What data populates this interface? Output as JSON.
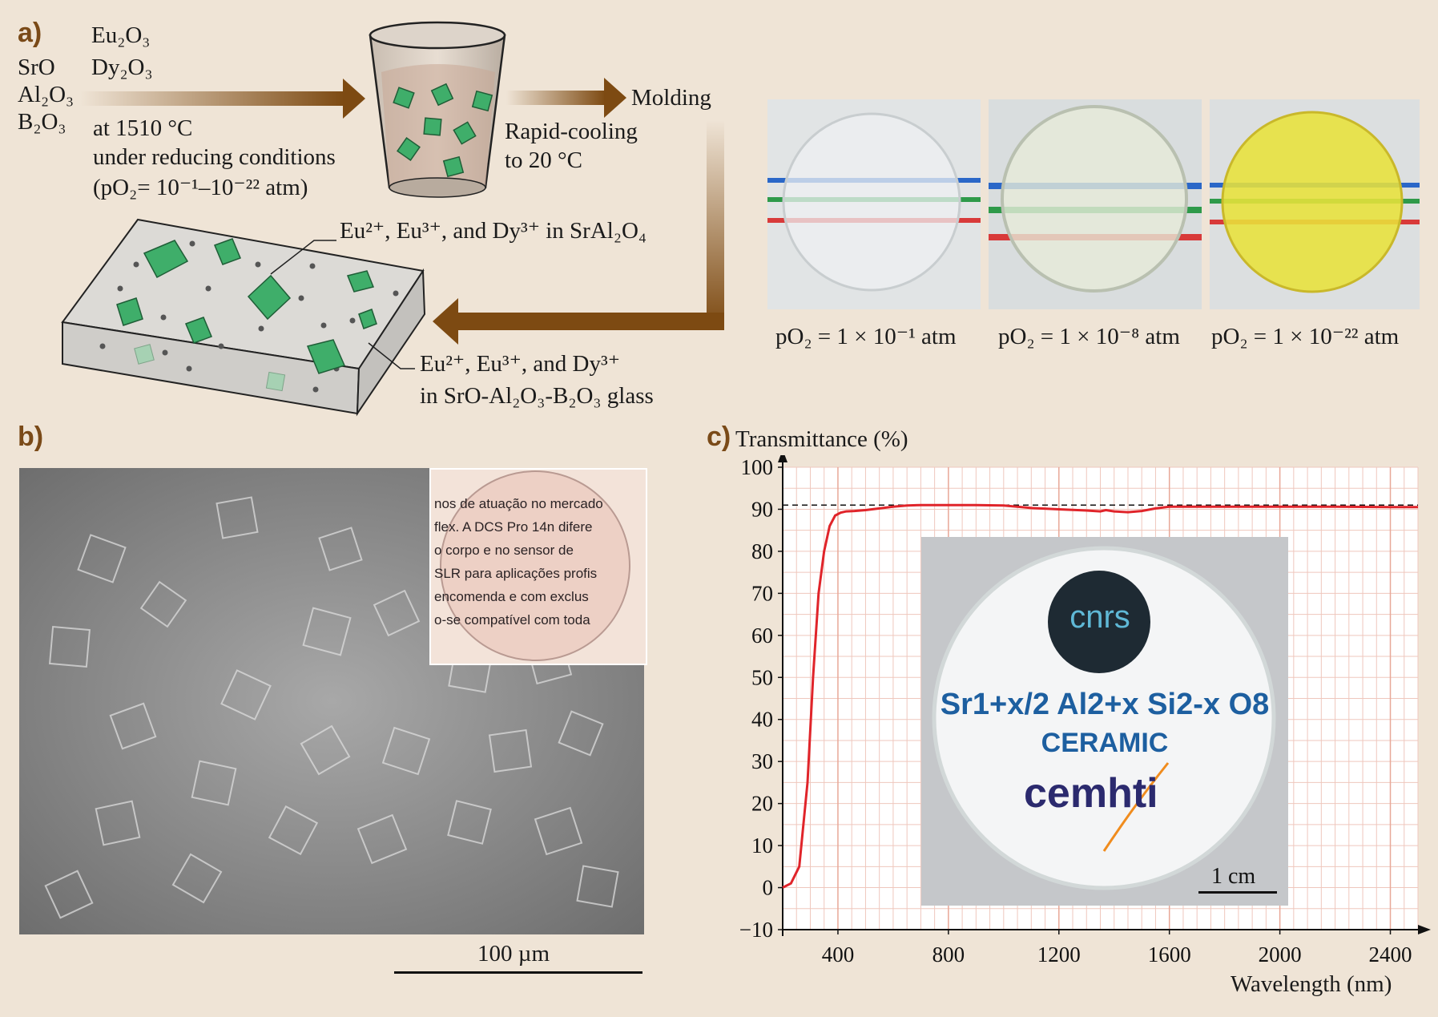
{
  "panel_a": {
    "letter": "a)",
    "reagents_left": [
      "SrO",
      "Al₂O₃",
      "B₂O₃"
    ],
    "reagents_top": [
      "Eu₂O₃",
      "Dy₂O₃"
    ],
    "cond_line1": "at 1510 °C",
    "cond_line2": "under reducing conditions",
    "cond_line3": "(pO₂= 10⁻¹–10⁻²² atm)",
    "rapid_line1": "Rapid-cooling",
    "rapid_line2": "to 20 °C",
    "molding": "Molding",
    "label_crystal": "Eu²⁺, Eu³⁺, and Dy³⁺ in SrAl₂O₄",
    "label_glass_line1": "Eu²⁺, Eu³⁺, and Dy³⁺",
    "label_glass_line2": "in SrO-Al₂O₃-B₂O₃ glass",
    "photo_labels": [
      "pO₂ = 1 × 10⁻¹ atm",
      "pO₂ = 1 × 10⁻⁸ atm",
      "pO₂ = 1 × 10⁻²² atm"
    ],
    "line_colors": [
      "#2a67c8",
      "#2e9a4a",
      "#d83a3a"
    ],
    "arrow_color": "#7d4a12"
  },
  "panel_b": {
    "letter": "b)",
    "scale_label": "100 µm",
    "inset_text_lines": [
      "nos de atuação no mercado",
      "flex. A DCS Pro 14n difere",
      "o corpo e no sensor de",
      "SLR para aplicações profis",
      "encomenda e com exclus",
      "o-se compatível com toda"
    ]
  },
  "panel_c": {
    "letter": "c)",
    "inset": {
      "logo_top": "cnrs",
      "formula": "Sr1+x/2 Al2+x Si2-x O8",
      "subtitle": "CERAMIC",
      "logo_bottom": "cemhti",
      "scale_label": "1 cm"
    }
  },
  "chart_data": {
    "type": "line",
    "title": "",
    "ylabel": "Transmittance (%)",
    "xlabel": "Wavelength (nm)",
    "xlim": [
      200,
      2500
    ],
    "ylim": [
      -10,
      100
    ],
    "xticks": [
      400,
      800,
      1200,
      1600,
      2000,
      2400
    ],
    "yticks": [
      -10,
      0,
      10,
      20,
      30,
      40,
      50,
      60,
      70,
      80,
      90,
      100
    ],
    "grid": true,
    "reference_line": {
      "y": 91,
      "style": "dashed"
    },
    "series": [
      {
        "color": "#e0242a",
        "x": [
          200,
          230,
          260,
          290,
          310,
          330,
          350,
          370,
          390,
          410,
          430,
          460,
          500,
          550,
          600,
          650,
          700,
          800,
          900,
          1000,
          1100,
          1200,
          1300,
          1350,
          1370,
          1400,
          1450,
          1500,
          1550,
          1600,
          1800,
          2000,
          2200,
          2400,
          2500
        ],
        "y": [
          0,
          1,
          5,
          25,
          50,
          70,
          80,
          86,
          88.5,
          89.2,
          89.5,
          89.6,
          89.8,
          90.2,
          90.6,
          90.9,
          91.0,
          91.0,
          91.0,
          90.9,
          90.3,
          90.0,
          89.7,
          89.5,
          89.8,
          89.5,
          89.3,
          89.6,
          90.2,
          90.6,
          90.6,
          90.6,
          90.6,
          90.5,
          90.5
        ]
      }
    ]
  }
}
